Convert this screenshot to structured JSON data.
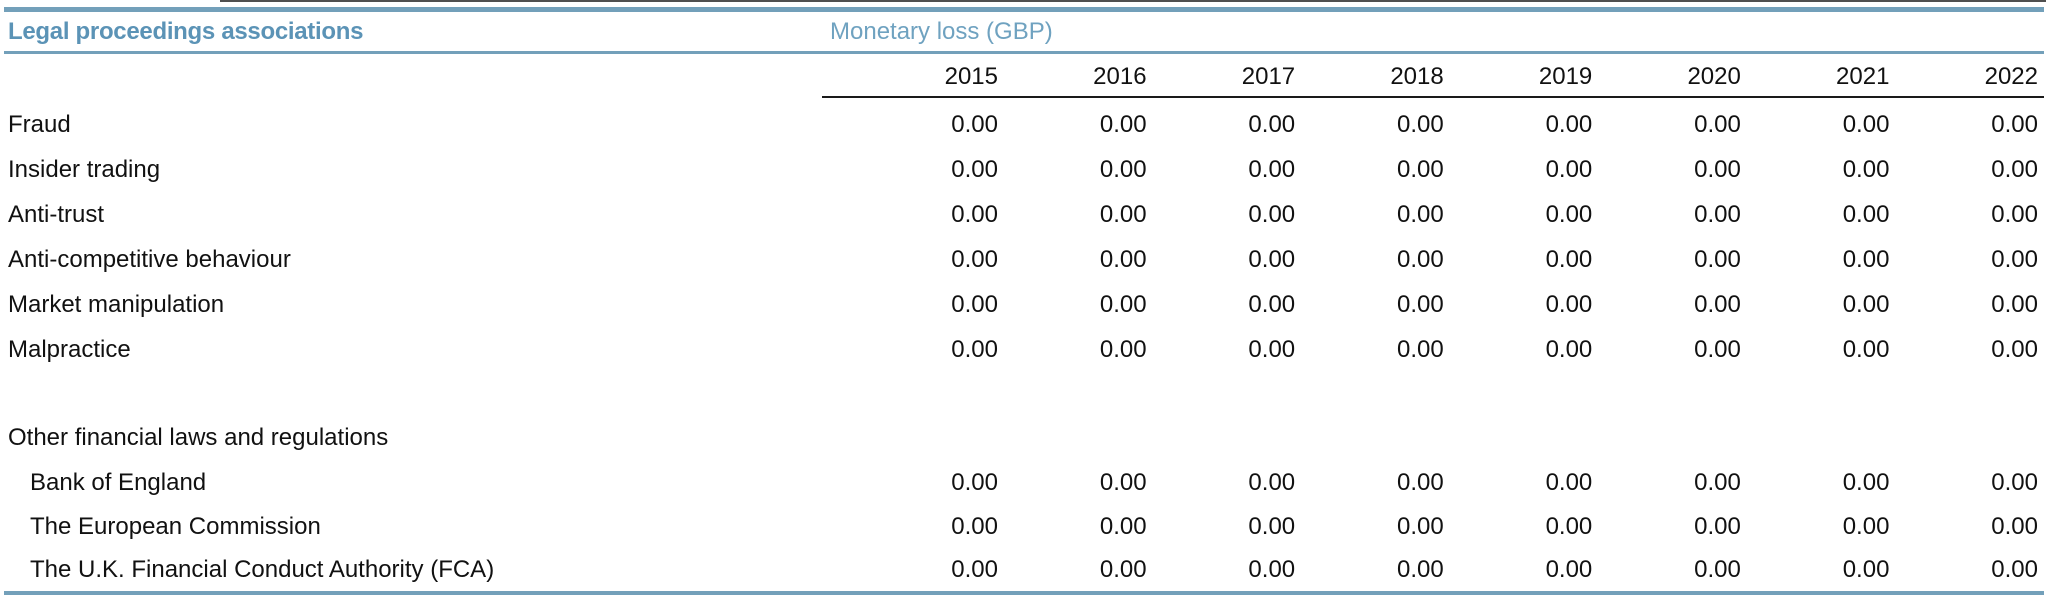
{
  "page": {
    "title_header": "Legal proceedings associations",
    "group_header": "Monetary loss (GBP)"
  },
  "columns": {
    "years": [
      "2015",
      "2016",
      "2017",
      "2018",
      "2019",
      "2020",
      "2021",
      "2022"
    ]
  },
  "rows": [
    {
      "label": "Fraud",
      "indent": false,
      "values": [
        "0.00",
        "0.00",
        "0.00",
        "0.00",
        "0.00",
        "0.00",
        "0.00",
        "0.00"
      ]
    },
    {
      "label": "Insider trading",
      "indent": false,
      "values": [
        "0.00",
        "0.00",
        "0.00",
        "0.00",
        "0.00",
        "0.00",
        "0.00",
        "0.00"
      ]
    },
    {
      "label": "Anti-trust",
      "indent": false,
      "values": [
        "0.00",
        "0.00",
        "0.00",
        "0.00",
        "0.00",
        "0.00",
        "0.00",
        "0.00"
      ]
    },
    {
      "label": "Anti-competitive behaviour",
      "indent": false,
      "values": [
        "0.00",
        "0.00",
        "0.00",
        "0.00",
        "0.00",
        "0.00",
        "0.00",
        "0.00"
      ]
    },
    {
      "label": "Market manipulation",
      "indent": false,
      "values": [
        "0.00",
        "0.00",
        "0.00",
        "0.00",
        "0.00",
        "0.00",
        "0.00",
        "0.00"
      ]
    },
    {
      "label": "Malpractice",
      "indent": false,
      "values": [
        "0.00",
        "0.00",
        "0.00",
        "0.00",
        "0.00",
        "0.00",
        "0.00",
        "0.00"
      ]
    },
    {
      "label": "",
      "spacer": true,
      "indent": false,
      "values": null
    },
    {
      "label": "Other financial laws and regulations",
      "indent": false,
      "values": null
    },
    {
      "label": "Bank of England",
      "indent": true,
      "values": [
        "0.00",
        "0.00",
        "0.00",
        "0.00",
        "0.00",
        "0.00",
        "0.00",
        "0.00"
      ]
    },
    {
      "label": "The European Commission",
      "indent": true,
      "values": [
        "0.00",
        "0.00",
        "0.00",
        "0.00",
        "0.00",
        "0.00",
        "0.00",
        "0.00"
      ]
    },
    {
      "label": "The U.K. Financial Conduct Authority (FCA)",
      "indent": true,
      "values": [
        "0.00",
        "0.00",
        "0.00",
        "0.00",
        "0.00",
        "0.00",
        "0.00",
        "0.00"
      ]
    }
  ],
  "colors": {
    "accent_line": "#73A0BA",
    "title_text": "#5B93B6",
    "group_header_text": "#6FA2C0",
    "year_underline": "#1a1a1a",
    "body_text": "#111111"
  }
}
